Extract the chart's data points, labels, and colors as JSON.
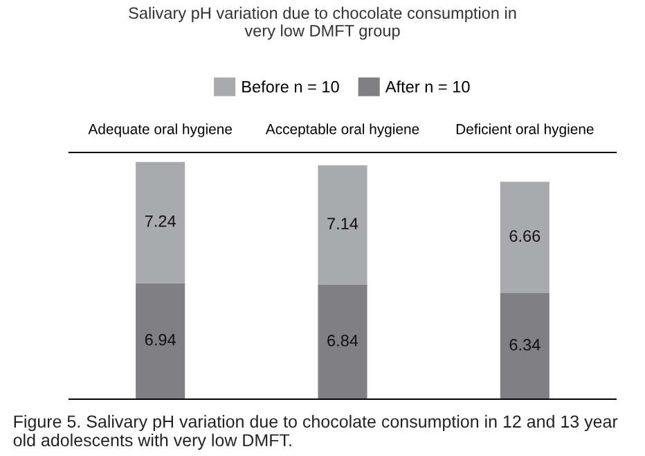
{
  "chart_data": {
    "type": "bar",
    "stacked": true,
    "title": "Salivary pH variation due to chocolate consumption in\nvery low DMFT group",
    "categories": [
      "Adequate oral hygiene",
      "Acceptable oral hygiene",
      "Deficient oral hygiene"
    ],
    "series": [
      {
        "name": "After n = 10",
        "color": "#808084",
        "values": [
          6.94,
          6.84,
          6.34
        ]
      },
      {
        "name": "Before n = 10",
        "color": "#a9aaad",
        "values": [
          7.24,
          7.14,
          6.66
        ]
      }
    ],
    "data_labels": true,
    "legend": "top",
    "grid": false,
    "annotations": [
      "Figure 5. Salivary pH variation due to chocolate consumption in 12 and 13 year old adolescents with very low DMFT."
    ]
  }
}
